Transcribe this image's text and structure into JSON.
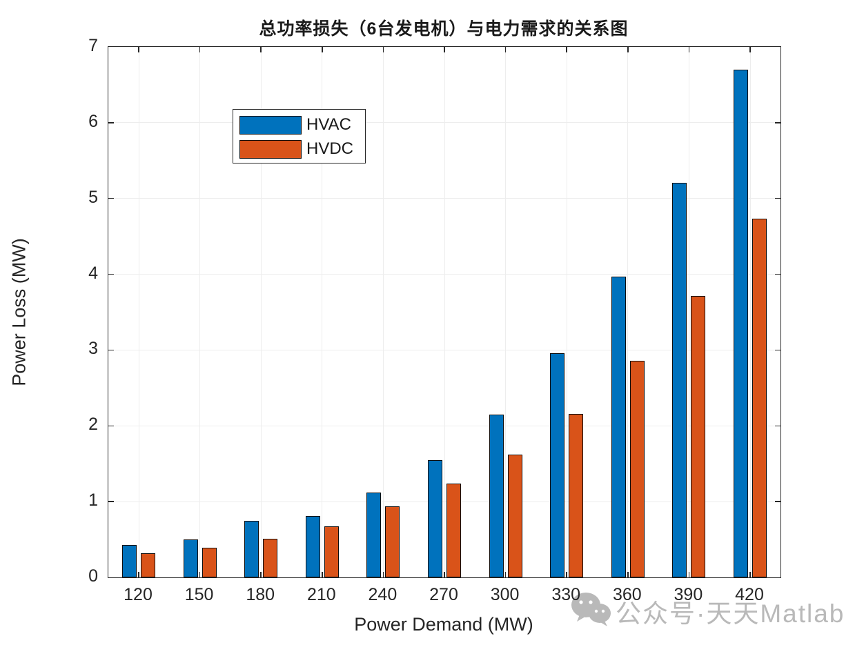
{
  "title": "总功率损失（6台发电机）与电力需求的关系图",
  "chart_data": {
    "type": "bar",
    "title": "总功率损失（6台发电机）与电力需求的关系图",
    "categories": [
      "120",
      "150",
      "180",
      "210",
      "240",
      "270",
      "300",
      "330",
      "360",
      "390",
      "420"
    ],
    "series": [
      {
        "name": "HVAC",
        "color": "#0072BD",
        "values": [
          0.43,
          0.5,
          0.75,
          0.81,
          1.12,
          1.55,
          2.15,
          2.96,
          3.97,
          5.21,
          6.7
        ]
      },
      {
        "name": "HVDC",
        "color": "#D95319",
        "values": [
          0.32,
          0.39,
          0.51,
          0.67,
          0.94,
          1.24,
          1.62,
          2.16,
          2.86,
          3.71,
          4.73
        ]
      }
    ],
    "xlabel": "Power Demand (MW)",
    "ylabel": "Power Loss (MW)",
    "ylim": [
      0,
      7
    ],
    "yticks": [
      0,
      1,
      2,
      3,
      4,
      5,
      6,
      7
    ],
    "grid": true,
    "legend_position": "top-left"
  },
  "watermark": {
    "icon": "wechat-icon",
    "text": "公众号·天天Matlab",
    "color": "#b9b9b9"
  }
}
